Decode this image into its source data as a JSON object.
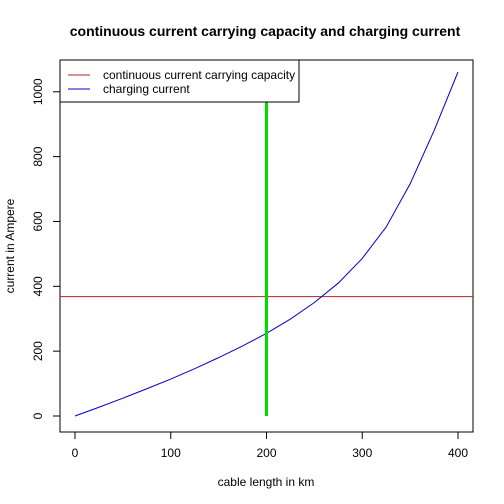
{
  "chart_data": {
    "type": "line",
    "title": "continuous current carrying capacity and charging current",
    "xlabel": "cable length in km",
    "ylabel": "current in Ampere",
    "xlim": [
      0,
      400
    ],
    "ylim": [
      0,
      1061
    ],
    "xticks": [
      "0",
      "100",
      "200",
      "300",
      "400"
    ],
    "yticks": [
      "0",
      "200",
      "400",
      "600",
      "800",
      "1000"
    ],
    "legend_position": "top-left",
    "series": [
      {
        "name": "continuous current carrying capacity",
        "color": "#b22222",
        "kind": "horizontal-line",
        "y": 368
      },
      {
        "name": "charging current",
        "color": "#0000cc",
        "kind": "curve",
        "x": [
          0,
          25,
          50,
          75,
          100,
          125,
          150,
          175,
          200,
          225,
          250,
          275,
          300,
          325,
          350,
          375,
          400
        ],
        "y": [
          0,
          27,
          55,
          84,
          114,
          146,
          180,
          216,
          255,
          299,
          350,
          410,
          486,
          583,
          716,
          880,
          1061
        ]
      }
    ],
    "vertical_marker": {
      "x": 200,
      "color": "#00dd00",
      "y_range": [
        0,
        1061
      ]
    }
  }
}
